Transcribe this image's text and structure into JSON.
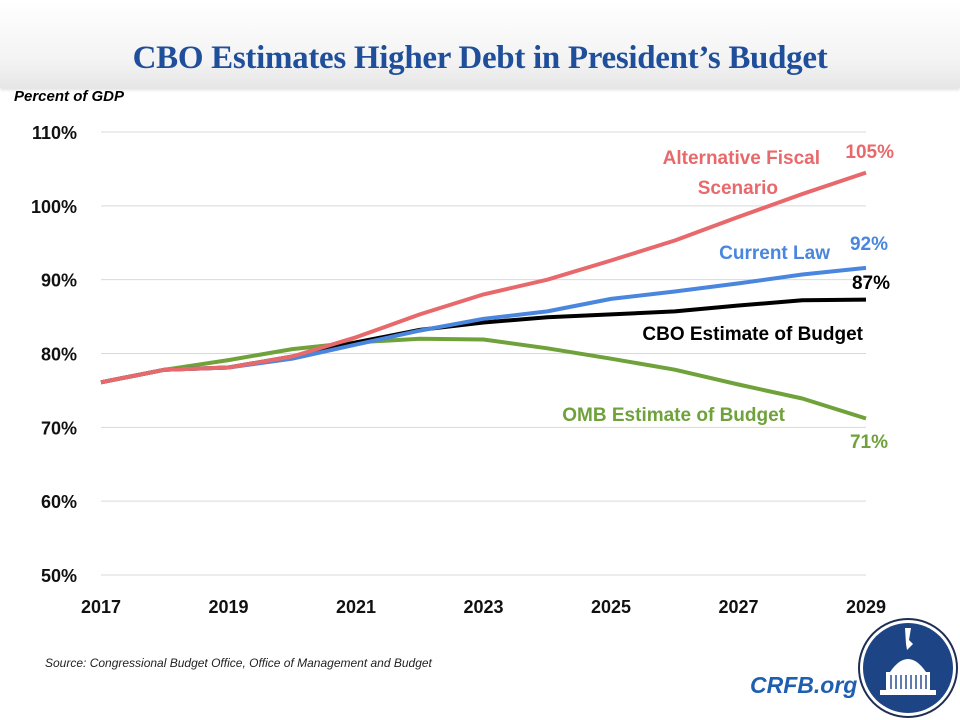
{
  "header": {
    "title": "CBO Estimates Higher Debt in President’s Budget"
  },
  "footer": {
    "source": "Source: Congressional Budget Office, Office of Management and Budget",
    "brand": "CRFB.org",
    "logo_icon": "capitol-dome-logo-icon"
  },
  "colors": {
    "title": "#1f4e9a",
    "alternative_fiscal": "#e8696b",
    "current_law": "#4a86de",
    "cbo_estimate": "#000000",
    "omb_estimate": "#6fa23a",
    "grid": "#d9d9d9",
    "logo": "#1d4585"
  },
  "chart_data": {
    "type": "line",
    "title": "CBO Estimates Higher Debt in President’s Budget",
    "xlabel": "",
    "ylabel": "Percent of GDP",
    "x": [
      2017,
      2018,
      2019,
      2020,
      2021,
      2022,
      2023,
      2024,
      2025,
      2026,
      2027,
      2028,
      2029
    ],
    "xticks": [
      "2017",
      "2019",
      "2021",
      "2023",
      "2025",
      "2027",
      "2029"
    ],
    "xlim": [
      2017,
      2029
    ],
    "ylim": [
      50,
      110
    ],
    "yticks": [
      50,
      60,
      70,
      80,
      90,
      100,
      110
    ],
    "ytick_labels": [
      "50%",
      "60%",
      "70%",
      "80%",
      "90%",
      "100%",
      "110%"
    ],
    "grid": true,
    "legend": "inline-labels",
    "series": [
      {
        "key": "omb_estimate",
        "name": "OMB Estimate of Budget",
        "end_label": "71%",
        "values": [
          76.1,
          77.8,
          79.1,
          80.6,
          81.5,
          82.0,
          81.9,
          80.7,
          79.3,
          77.8,
          75.8,
          73.9,
          71.2
        ]
      },
      {
        "key": "cbo_estimate",
        "name": "CBO Estimate of Budget",
        "end_label": "87%",
        "values": [
          76.1,
          77.8,
          78.1,
          79.6,
          81.5,
          83.2,
          84.2,
          84.9,
          85.3,
          85.7,
          86.5,
          87.2,
          87.3
        ]
      },
      {
        "key": "current_law",
        "name": "Current Law",
        "end_label": "92%",
        "values": [
          76.1,
          77.8,
          78.1,
          79.3,
          81.2,
          83.1,
          84.7,
          85.7,
          87.4,
          88.4,
          89.5,
          90.7,
          91.6
        ]
      },
      {
        "key": "alternative_fiscal",
        "name": "Alternative Fiscal Scenario",
        "name_lines": [
          "Alternative Fiscal",
          "Scenario"
        ],
        "end_label": "105%",
        "values": [
          76.1,
          77.8,
          78.1,
          79.6,
          82.2,
          85.3,
          88.0,
          90.0,
          92.6,
          95.3,
          98.5,
          101.6,
          104.5
        ]
      }
    ]
  }
}
